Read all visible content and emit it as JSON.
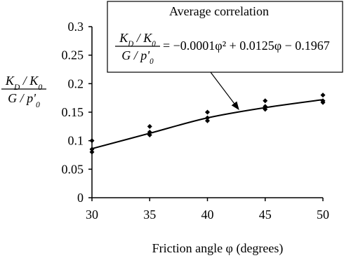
{
  "chart_data": {
    "type": "scatter",
    "annotation": {
      "title": "Average correlation",
      "lhs": {
        "numerator": [
          "K",
          "D",
          " / K",
          "0"
        ],
        "denominator": [
          "G / p'",
          "0"
        ]
      },
      "rhs": "= −0.0001φ² + 0.0125φ − 0.1967"
    },
    "y_label": {
      "numerator": [
        "K",
        "D",
        " / K",
        "0"
      ],
      "denominator": [
        "G / p'",
        "0"
      ]
    },
    "x_label": "Friction angle φ (degrees)",
    "points": {
      "x": [
        30,
        30,
        30,
        35,
        35,
        35,
        40,
        40,
        40,
        45,
        45,
        45,
        50,
        50,
        50
      ],
      "values": [
        0.1,
        0.085,
        0.08,
        0.125,
        0.115,
        0.11,
        0.15,
        0.14,
        0.135,
        0.17,
        0.16,
        0.155,
        0.18,
        0.17,
        0.167
      ],
      "color": "#000000"
    },
    "fit": {
      "x": [
        30,
        35,
        40,
        45,
        50
      ],
      "values": [
        0.086,
        0.113,
        0.14,
        0.158,
        0.172
      ],
      "color": "#000000"
    },
    "xlim": [
      30,
      50
    ],
    "xticks": [
      30,
      35,
      40,
      45,
      50
    ],
    "ylim": [
      0,
      0.3
    ],
    "yticks": [
      0,
      0.05,
      0.1,
      0.15,
      0.2,
      0.25,
      0.3
    ]
  }
}
